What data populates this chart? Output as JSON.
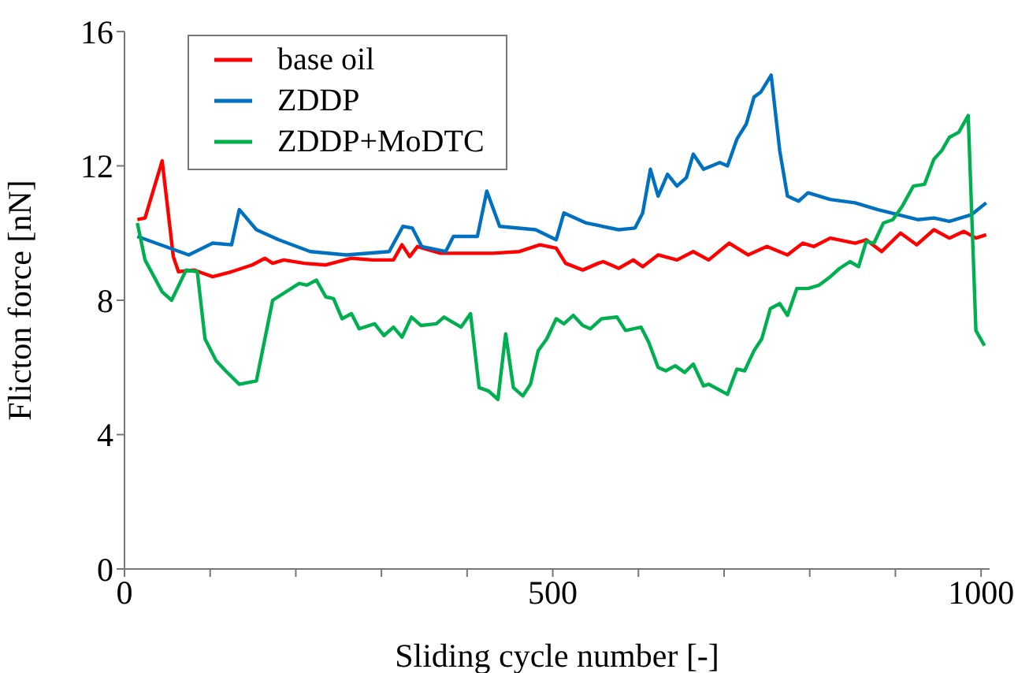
{
  "chart_data": {
    "type": "line",
    "xlabel": "Sliding cycle number [-]",
    "ylabel": "Flicton force [nN]",
    "xlim": [
      0,
      1010
    ],
    "ylim": [
      0,
      16
    ],
    "xticks": [
      0,
      {
        "value": 100,
        "label": null
      },
      {
        "value": 200,
        "label": null
      },
      {
        "value": 300,
        "label": null
      },
      {
        "value": 400,
        "label": null
      },
      500,
      {
        "value": 600,
        "label": null
      },
      {
        "value": 700,
        "label": null
      },
      {
        "value": 800,
        "label": null
      },
      {
        "value": 900,
        "label": null
      },
      1000
    ],
    "yticks": [
      0,
      4,
      8,
      12,
      16
    ],
    "grid": false,
    "legend": "top left",
    "marker": "none",
    "line_style": "solid",
    "series": [
      {
        "name": "base oil",
        "color": "#ff0000",
        "x": [
          15,
          24,
          44,
          57,
          63,
          81,
          103,
          125,
          149,
          164,
          173,
          186,
          210,
          235,
          265,
          290,
          314,
          324,
          333,
          342,
          369,
          401,
          430,
          461,
          485,
          504,
          515,
          535,
          553,
          559,
          577,
          594,
          605,
          623,
          645,
          664,
          682,
          706,
          728,
          750,
          774,
          792,
          805,
          824,
          853,
          866,
          884,
          906,
          925,
          945,
          963,
          980,
          994,
          1006
        ],
        "values": [
          10.4,
          10.45,
          12.15,
          9.3,
          8.85,
          8.9,
          8.7,
          8.85,
          9.05,
          9.25,
          9.1,
          9.2,
          9.1,
          9.05,
          9.25,
          9.2,
          9.2,
          9.65,
          9.3,
          9.6,
          9.4,
          9.4,
          9.4,
          9.45,
          9.65,
          9.55,
          9.1,
          8.9,
          9.1,
          9.15,
          8.95,
          9.2,
          9.0,
          9.35,
          9.2,
          9.45,
          9.2,
          9.7,
          9.35,
          9.6,
          9.35,
          9.7,
          9.6,
          9.85,
          9.7,
          9.8,
          9.45,
          10.0,
          9.65,
          10.1,
          9.85,
          10.05,
          9.85,
          9.95
        ]
      },
      {
        "name": "ZDDP",
        "color": "#0070c0",
        "x": [
          15,
          75,
          103,
          125,
          134,
          154,
          180,
          217,
          259,
          309,
          325,
          336,
          347,
          375,
          384,
          412,
          423,
          438,
          480,
          504,
          513,
          539,
          577,
          596,
          605,
          614,
          623,
          634,
          645,
          656,
          664,
          676,
          695,
          704,
          715,
          726,
          735,
          743,
          755,
          765,
          774,
          787,
          798,
          824,
          853,
          879,
          903,
          926,
          945,
          963,
          989,
          1006
        ],
        "values": [
          9.9,
          9.35,
          9.7,
          9.65,
          10.7,
          10.1,
          9.8,
          9.45,
          9.35,
          9.45,
          10.2,
          10.15,
          9.6,
          9.45,
          9.9,
          9.9,
          11.25,
          10.2,
          10.1,
          9.8,
          10.6,
          10.3,
          10.1,
          10.15,
          10.6,
          11.9,
          11.1,
          11.75,
          11.4,
          11.65,
          12.35,
          11.9,
          12.1,
          12.0,
          12.8,
          13.25,
          14.05,
          14.2,
          14.7,
          12.45,
          11.1,
          10.95,
          11.2,
          11.0,
          10.9,
          10.7,
          10.55,
          10.4,
          10.45,
          10.35,
          10.55,
          10.9
        ]
      },
      {
        "name": "ZDDP+MoDTC",
        "color": "#00b050",
        "x": [
          15,
          24,
          44,
          55,
          72,
          85,
          94,
          107,
          118,
          134,
          154,
          173,
          204,
          213,
          224,
          235,
          244,
          254,
          265,
          274,
          292,
          303,
          314,
          324,
          335,
          346,
          364,
          373,
          393,
          404,
          414,
          425,
          436,
          445,
          454,
          465,
          474,
          483,
          493,
          504,
          513,
          524,
          535,
          544,
          557,
          575,
          585,
          603,
          612,
          623,
          632,
          643,
          654,
          664,
          676,
          682,
          704,
          715,
          724,
          735,
          744,
          754,
          765,
          774,
          785,
          798,
          811,
          824,
          835,
          847,
          857,
          866,
          875,
          886,
          897,
          908,
          921,
          934,
          945,
          954,
          963,
          974,
          985,
          994,
          1004
        ],
        "values": [
          10.3,
          9.2,
          8.25,
          8.0,
          8.9,
          8.85,
          6.85,
          6.2,
          5.9,
          5.5,
          5.6,
          8.0,
          8.5,
          8.45,
          8.6,
          8.1,
          8.05,
          7.45,
          7.6,
          7.15,
          7.3,
          6.95,
          7.2,
          6.9,
          7.5,
          7.25,
          7.3,
          7.5,
          7.2,
          7.6,
          5.4,
          5.3,
          5.05,
          7.0,
          5.4,
          5.15,
          5.5,
          6.5,
          6.85,
          7.45,
          7.3,
          7.55,
          7.25,
          7.15,
          7.45,
          7.5,
          7.1,
          7.2,
          6.75,
          6.0,
          5.9,
          6.05,
          5.85,
          6.1,
          5.45,
          5.5,
          5.2,
          5.95,
          5.9,
          6.5,
          6.85,
          7.75,
          7.9,
          7.55,
          8.35,
          8.35,
          8.45,
          8.7,
          8.95,
          9.15,
          9.0,
          9.75,
          9.7,
          10.3,
          10.4,
          10.8,
          11.4,
          11.45,
          12.2,
          12.45,
          12.85,
          13.0,
          13.5,
          7.1,
          6.65
        ]
      }
    ]
  }
}
